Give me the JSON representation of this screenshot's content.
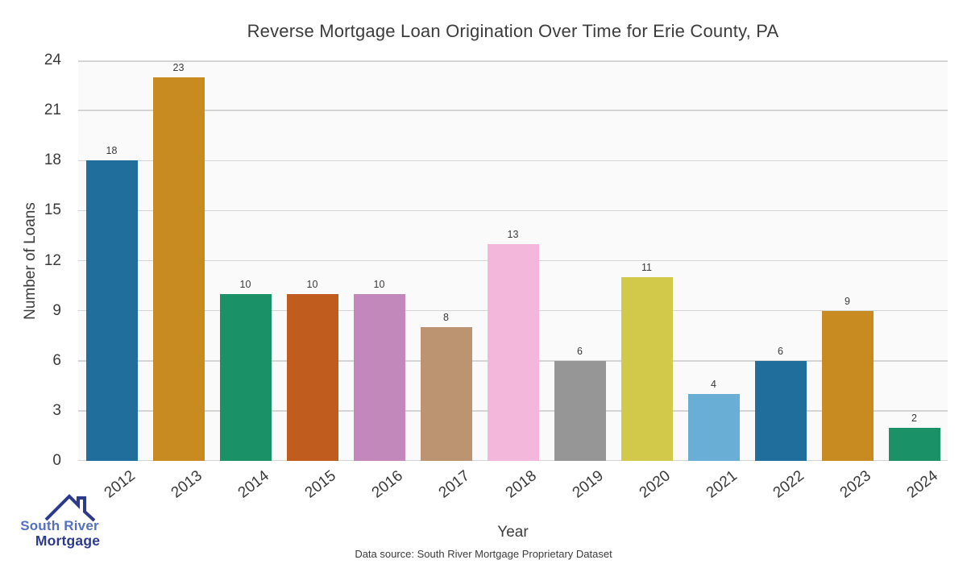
{
  "chart_data": {
    "type": "bar",
    "title": "Reverse Mortgage Loan Origination Over Time for Erie County, PA",
    "xlabel": "Year",
    "ylabel": "Number of Loans",
    "categories": [
      "2012",
      "2013",
      "2014",
      "2015",
      "2016",
      "2017",
      "2018",
      "2019",
      "2020",
      "2021",
      "2022",
      "2023",
      "2024"
    ],
    "values": [
      18,
      23,
      10,
      10,
      10,
      8,
      13,
      6,
      11,
      4,
      6,
      9,
      2
    ],
    "bar_colors": [
      "#1f6e9c",
      "#c78b21",
      "#1b9168",
      "#c05d1e",
      "#c287bb",
      "#bd9472",
      "#f2b7db",
      "#969696",
      "#d2c94b",
      "#69afd5",
      "#1f6e9c",
      "#c78b21",
      "#1b9168"
    ],
    "ylim": [
      0,
      24
    ],
    "yticks": [
      0,
      3,
      6,
      9,
      12,
      15,
      18,
      21,
      24
    ],
    "grid": "horizontal",
    "legend": "none",
    "value_labels": true,
    "x_tick_rotation_deg": 38
  },
  "footer": {
    "source": "Data source: South River Mortgage Proprietary Dataset"
  },
  "logo": {
    "line1": "South River",
    "line2": "Mortgage",
    "line1_color": "#5571bd",
    "line2_color": "#2d3a8c",
    "roof_color": "#2d3a8c"
  },
  "colors": {
    "plot_background": "#fafafa",
    "page_background": "#ffffff",
    "grid_line": "#d4d4d4",
    "text": "#3a3a3a"
  }
}
